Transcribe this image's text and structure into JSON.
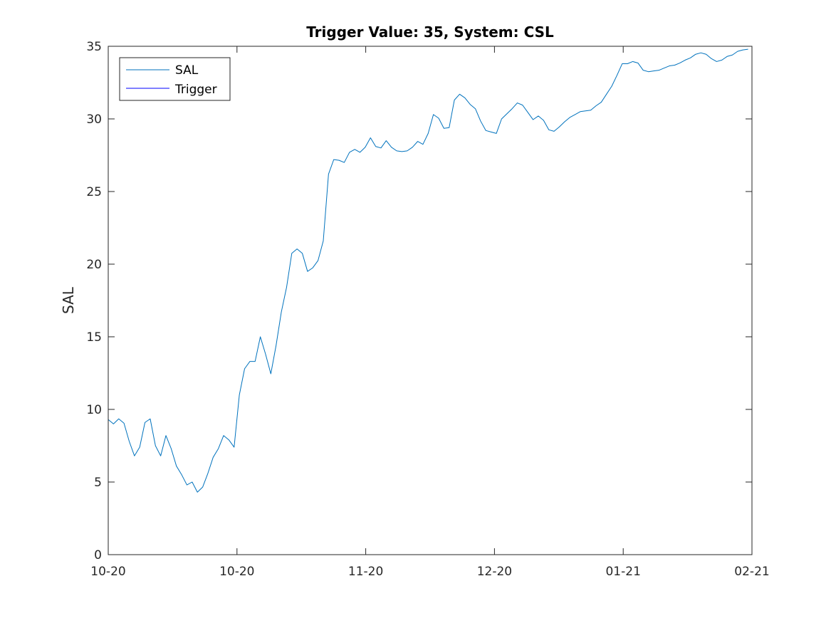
{
  "chart_data": {
    "type": "line",
    "title": "Trigger Value: 35, System: CSL",
    "xlabel": "",
    "ylabel": "SAL",
    "ylim": [
      0,
      35
    ],
    "yticks": [
      0,
      5,
      10,
      15,
      20,
      25,
      30,
      35
    ],
    "xticks": [
      "10-20",
      "10-20",
      "11-20",
      "12-20",
      "01-21",
      "02-21"
    ],
    "xlim": [
      "2020-10-01",
      "2021-02-01"
    ],
    "grid": false,
    "legend": {
      "placement": "top-left",
      "entries": [
        "SAL",
        "Trigger"
      ]
    },
    "series": [
      {
        "name": "SAL",
        "color": "#0072bd",
        "values": [
          9.3,
          9.0,
          9.35,
          9.05,
          7.8,
          6.8,
          7.4,
          9.1,
          9.35,
          7.5,
          6.8,
          8.2,
          7.3,
          6.1,
          5.5,
          4.8,
          5.0,
          4.3,
          4.65,
          5.6,
          6.7,
          7.3,
          8.2,
          7.9,
          7.4,
          11.0,
          12.8,
          13.3,
          13.3,
          15.0,
          13.8,
          12.45,
          14.4,
          16.7,
          18.4,
          20.75,
          21.05,
          20.75,
          19.5,
          19.75,
          20.25,
          21.6,
          26.2,
          27.2,
          27.15,
          27.0,
          27.7,
          27.9,
          27.7,
          28.05,
          28.7,
          28.1,
          28.0,
          28.5,
          28.05,
          27.8,
          27.75,
          27.8,
          28.05,
          28.45,
          28.25,
          29.0,
          30.3,
          30.05,
          29.35,
          29.4,
          31.3,
          31.7,
          31.45,
          31.0,
          30.7,
          29.85,
          29.2,
          29.1,
          29.0,
          30.0,
          30.35,
          30.7,
          31.1,
          30.95,
          30.45,
          29.95,
          30.2,
          29.9,
          29.25,
          29.15,
          29.45,
          29.8,
          30.1,
          30.3,
          30.5,
          30.55,
          30.6,
          30.9,
          31.15,
          31.7,
          32.25,
          33.0,
          33.8,
          33.8,
          33.95,
          33.85,
          33.35,
          33.25,
          33.3,
          33.35,
          33.5,
          33.65,
          33.7,
          33.85,
          34.05,
          34.2,
          34.45,
          34.55,
          34.45,
          34.15,
          33.95,
          34.05,
          34.3,
          34.4,
          34.65,
          34.75,
          34.8
        ]
      },
      {
        "name": "Trigger",
        "color": "#0000ff",
        "values": [
          35,
          35
        ]
      }
    ]
  }
}
